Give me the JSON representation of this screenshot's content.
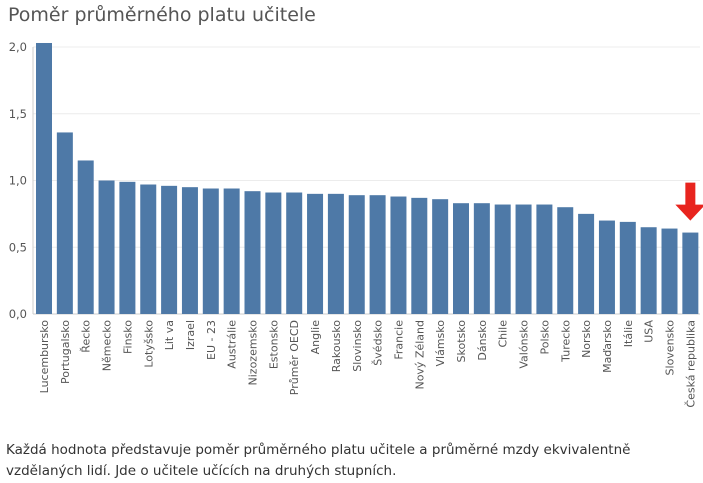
{
  "chart_data": {
    "type": "bar",
    "title": "Poměr průměrného platu učitele",
    "xlabel": "",
    "ylabel": "",
    "ylim": [
      0,
      2.0
    ],
    "yticks": [
      "0,0",
      "0,5",
      "1,0",
      "1,5",
      "2,0"
    ],
    "grid": true,
    "categories": [
      "Lucembursko",
      "Portugalsko",
      "Řecko",
      "Německo",
      "Finsko",
      "Lotyšsko",
      "Lit va",
      "Izrael",
      "EU - 23",
      "Austrálie",
      "Nizozemsko",
      "Estonsko",
      "Průměr OECD",
      "Anglie",
      "Rakousko",
      "Slovinsko",
      "Švédsko",
      "Francie",
      "Nový Zéland",
      "Vlámsko",
      "Skotsko",
      "Dánsko",
      "Chile",
      "Valónsko",
      "Polsko",
      "Turecko",
      "Norsko",
      "Maďarsko",
      "Itálie",
      "USA",
      "Slovensko",
      "Česká republika"
    ],
    "values": [
      2.03,
      1.36,
      1.15,
      1.0,
      0.99,
      0.97,
      0.96,
      0.95,
      0.94,
      0.94,
      0.92,
      0.91,
      0.91,
      0.9,
      0.9,
      0.89,
      0.89,
      0.88,
      0.87,
      0.86,
      0.83,
      0.83,
      0.82,
      0.82,
      0.82,
      0.8,
      0.75,
      0.7,
      0.69,
      0.65,
      0.64,
      0.61
    ],
    "highlight": "Česká republika",
    "colors": {
      "bar": "#4e79a7",
      "arrow": "#e8241e",
      "grid": "#ececec",
      "axis": "#cccccc",
      "text": "#555555"
    }
  },
  "caption": "Každá hodnota představuje poměr průměrného platu učitele a průměrné mzdy ekvivalentně vzdělaných lidí. Jde o učitele učících na druhých stupních."
}
